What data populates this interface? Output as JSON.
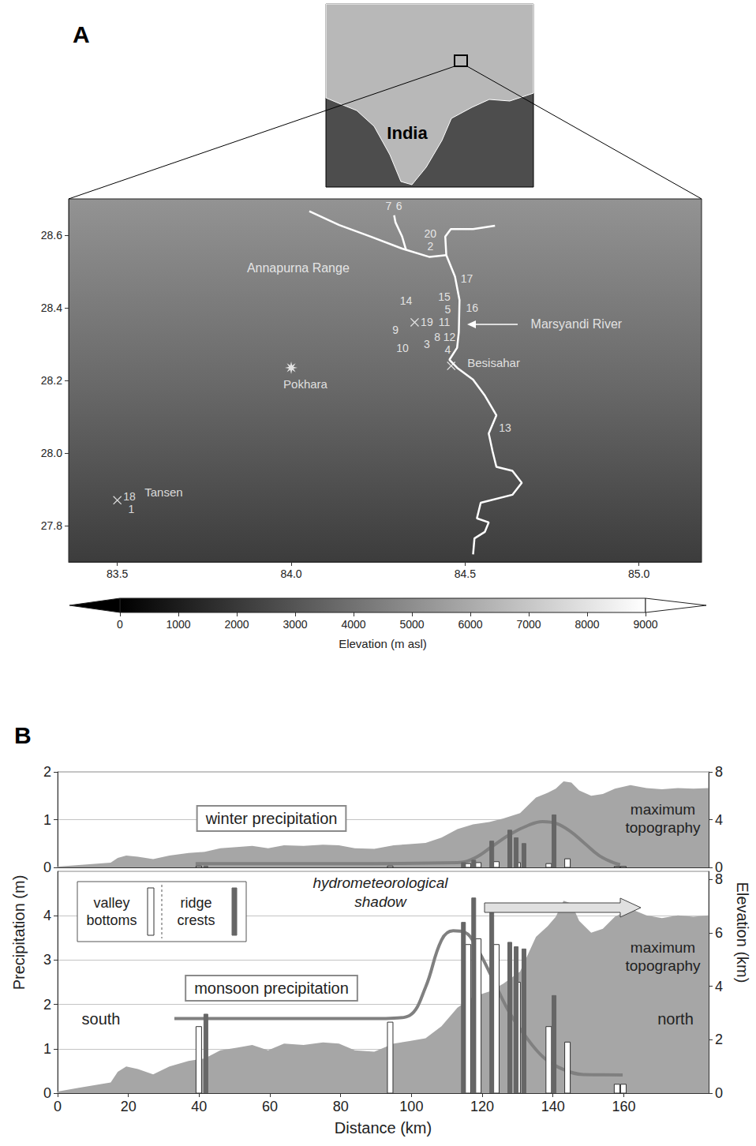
{
  "chart_data": [
    {
      "type": "map",
      "panel": "A",
      "xlim": [
        83.36,
        85.18
      ],
      "xticks": [
        83.5,
        {
          "value": 84,
          "label": "84.0"
        },
        84.5,
        {
          "value": 85,
          "label": "85.0"
        }
      ],
      "ylim": [
        27.7,
        28.7
      ],
      "yticks": [
        27.8,
        {
          "value": 28,
          "label": "28.0"
        },
        28.2,
        28.4,
        28.6
      ],
      "inset": {
        "label": "India"
      },
      "river": [
        [
          [
            84.523,
            27.721
          ],
          [
            84.527,
            27.765
          ],
          [
            84.557,
            27.783
          ],
          [
            84.568,
            27.809
          ],
          [
            84.534,
            27.82
          ],
          [
            84.545,
            27.863
          ],
          [
            84.636,
            27.885
          ],
          [
            84.663,
            27.918
          ],
          [
            84.636,
            27.951
          ],
          [
            84.59,
            27.962
          ],
          [
            84.579,
            28.005
          ],
          [
            84.568,
            28.054
          ],
          [
            84.59,
            28.104
          ],
          [
            84.557,
            28.158
          ],
          [
            84.523,
            28.202
          ],
          [
            84.477,
            28.235
          ],
          [
            84.455,
            28.257
          ],
          [
            84.477,
            28.29
          ],
          [
            84.482,
            28.333
          ],
          [
            84.484,
            28.421
          ],
          [
            84.471,
            28.486
          ],
          [
            84.446,
            28.545
          ],
          [
            84.443,
            28.596
          ],
          [
            84.459,
            28.617
          ],
          [
            84.523,
            28.617
          ],
          [
            84.586,
            28.626
          ]
        ],
        [
          [
            84.052,
            28.666
          ],
          [
            84.138,
            28.628
          ],
          [
            84.229,
            28.596
          ],
          [
            84.319,
            28.563
          ],
          [
            84.398,
            28.54
          ],
          [
            84.446,
            28.545
          ]
        ],
        [
          [
            84.296,
            28.655
          ],
          [
            84.3,
            28.635
          ],
          [
            84.319,
            28.596
          ],
          [
            84.33,
            28.56
          ]
        ]
      ],
      "stations": [
        {
          "id": 1,
          "lon": 83.54,
          "lat": 27.845
        },
        {
          "id": 2,
          "lon": 84.4,
          "lat": 28.57
        },
        {
          "id": 3,
          "lon": 84.39,
          "lat": 28.3
        },
        {
          "id": 4,
          "lon": 84.45,
          "lat": 28.285
        },
        {
          "id": 5,
          "lon": 84.45,
          "lat": 28.395
        },
        {
          "id": 6,
          "lon": 84.31,
          "lat": 28.68
        },
        {
          "id": 7,
          "lon": 84.28,
          "lat": 28.68
        },
        {
          "id": 8,
          "lon": 84.42,
          "lat": 28.32
        },
        {
          "id": 9,
          "lon": 84.3,
          "lat": 28.34
        },
        {
          "id": 10,
          "lon": 84.32,
          "lat": 28.29
        },
        {
          "id": 11,
          "lon": 84.44,
          "lat": 28.36
        },
        {
          "id": 12,
          "lon": 84.455,
          "lat": 28.32
        },
        {
          "id": 13,
          "lon": 84.615,
          "lat": 28.07
        },
        {
          "id": 14,
          "lon": 84.33,
          "lat": 28.42
        },
        {
          "id": 15,
          "lon": 84.44,
          "lat": 28.43
        },
        {
          "id": 16,
          "lon": 84.52,
          "lat": 28.4
        },
        {
          "id": 17,
          "lon": 84.505,
          "lat": 28.48
        },
        {
          "id": 18,
          "lon": 83.535,
          "lat": 27.88
        },
        {
          "id": 19,
          "lon": 84.39,
          "lat": 28.36
        },
        {
          "id": 20,
          "lon": 84.4,
          "lat": 28.605
        }
      ],
      "places": [
        {
          "name": "Pokhara",
          "lon": 84.0,
          "lat": 28.235,
          "marker": "star"
        },
        {
          "name": "Besisahar",
          "lon": 84.46,
          "lat": 28.24,
          "marker": "x"
        },
        {
          "name": "Tansen",
          "lon": 83.5,
          "lat": 27.87,
          "marker": "x"
        },
        {
          "lon": 84.355,
          "lat": 28.36,
          "marker": "x"
        }
      ],
      "labels": [
        {
          "text": "Annapurna Range",
          "lon": 84.02,
          "lat": 28.51
        },
        {
          "text": "Marsyandi River",
          "lon": 84.82,
          "lat": 28.355
        }
      ],
      "colorbar": {
        "range": [
          0,
          9000
        ],
        "ticks": [
          0,
          1000,
          2000,
          3000,
          4000,
          5000,
          6000,
          7000,
          8000,
          9000
        ],
        "label": "Elevation (m asl)"
      }
    },
    {
      "type": "bar",
      "panel": "B",
      "xlim": [
        0,
        184
      ],
      "ylim": [
        0,
        2
      ],
      "yticks": [
        0,
        1,
        2
      ],
      "y2lim": [
        0,
        8
      ],
      "y2ticks": [
        0,
        4,
        8
      ],
      "grid": true,
      "tick_labels": "y",
      "series": [
        {
          "name": "maximum topography",
          "type": "area",
          "axis": "y2",
          "color": "#a6a6a6",
          "x": [
            0,
            6,
            15,
            17,
            19.4,
            22.7,
            27,
            31.6,
            37,
            41.6,
            46,
            50.6,
            55,
            59.5,
            64,
            69.5,
            75,
            79.5,
            84,
            89.5,
            95,
            99.5,
            104,
            108.5,
            113,
            117.4,
            122,
            126,
            130.7,
            135.2,
            138.5,
            140.8,
            143,
            145.2,
            147.4,
            150.8,
            154.1,
            157.5,
            161.9,
            166.4,
            170.8,
            175.3,
            179.7,
            184
          ],
          "values": [
            0.06,
            0.2,
            0.4,
            0.8,
            1.0,
            0.9,
            0.7,
            1.0,
            1.2,
            1.3,
            1.6,
            1.7,
            1.8,
            1.6,
            1.85,
            1.8,
            1.9,
            1.85,
            1.6,
            1.55,
            1.85,
            1.95,
            2.05,
            2.5,
            3.2,
            3.6,
            3.8,
            4.1,
            4.55,
            5.85,
            6.25,
            6.6,
            7.2,
            7.1,
            6.45,
            6.0,
            6.15,
            6.6,
            6.9,
            6.65,
            6.55,
            6.65,
            6.6,
            6.65
          ]
        },
        {
          "name": "winter precipitation",
          "type": "line",
          "color": "#808080",
          "x": [
            39,
            80,
            113,
            118,
            123,
            128,
            133,
            137,
            141,
            145,
            149,
            153,
            157,
            159
          ],
          "values": [
            0.08,
            0.08,
            0.1,
            0.2,
            0.45,
            0.7,
            0.88,
            0.96,
            0.92,
            0.75,
            0.5,
            0.25,
            0.1,
            0.06
          ]
        },
        {
          "name": "valley bottoms",
          "type": "bar",
          "color": "#ffffff",
          "x": [
            39.9,
            94,
            116,
            118.9,
            124,
            130,
            138.8,
            144.1,
            158.1,
            159.9
          ],
          "values": [
            0.03,
            0.03,
            0.08,
            0.1,
            0.12,
            0.1,
            0.08,
            0.18,
            0.02,
            0.02
          ]
        },
        {
          "name": "ridge crests",
          "type": "bar",
          "color": "#666666",
          "x": [
            41.9,
            114.7,
            117.6,
            122.7,
            127.8,
            129.6,
            131.8,
            140.3
          ],
          "values": [
            0.03,
            0.1,
            0.15,
            0.55,
            0.78,
            0.62,
            0.5,
            1.1
          ]
        }
      ]
    },
    {
      "type": "bar",
      "xlabel": "Distance (km)",
      "ylabel": "Precipitation (m)",
      "y2label": "Elevation (km)",
      "xlim": [
        0,
        184
      ],
      "xticks": [
        0,
        20,
        40,
        60,
        80,
        100,
        120,
        140,
        160
      ],
      "ylim": [
        0,
        5
      ],
      "yticks": [
        0,
        1,
        2,
        3,
        4
      ],
      "y2lim": [
        0,
        8.3
      ],
      "y2ticks": [
        0,
        2,
        4,
        6,
        8
      ],
      "grid": true,
      "legend": "upper left",
      "annotations": [
        "hydrometeorological shadow",
        "south",
        "north"
      ],
      "series": [
        {
          "name": "maximum topography",
          "type": "area",
          "axis": "y2",
          "color": "#a6a6a6",
          "x": [
            0,
            6,
            15,
            17,
            19.4,
            22.7,
            27,
            31.6,
            37,
            41.6,
            46,
            50.6,
            55,
            59.5,
            64,
            69.5,
            75,
            79.5,
            84,
            89.5,
            95,
            99.5,
            104,
            108.5,
            113,
            117.4,
            122,
            126,
            130.7,
            135.2,
            138.5,
            140.8,
            143,
            145.2,
            147.4,
            150.8,
            154.1,
            157.5,
            161.9,
            166.4,
            170.8,
            175.3,
            179.7,
            184
          ],
          "values": [
            0.06,
            0.2,
            0.4,
            0.8,
            1.0,
            0.9,
            0.7,
            1.0,
            1.2,
            1.3,
            1.6,
            1.7,
            1.8,
            1.6,
            1.85,
            1.8,
            1.9,
            1.85,
            1.6,
            1.55,
            1.85,
            1.95,
            2.05,
            2.5,
            3.2,
            3.6,
            3.8,
            4.1,
            4.55,
            5.85,
            6.25,
            6.6,
            7.2,
            7.1,
            6.45,
            6.0,
            6.15,
            6.6,
            6.9,
            6.65,
            6.55,
            6.65,
            6.6,
            6.65
          ]
        },
        {
          "name": "monsoon precipitation",
          "type": "line",
          "color": "#808080",
          "x": [
            33,
            60,
            90,
            95,
            99.5,
            104,
            108.5,
            111.8,
            115,
            118.5,
            123,
            127.4,
            131.8,
            137.4,
            143,
            148.6,
            159.7
          ],
          "values": [
            1.68,
            1.68,
            1.68,
            1.69,
            1.75,
            2.39,
            3.45,
            3.66,
            3.63,
            3.27,
            2.57,
            1.86,
            1.33,
            0.8,
            0.53,
            0.42,
            0.41
          ]
        },
        {
          "name": "valley bottoms",
          "type": "bar",
          "color": "#ffffff",
          "x": [
            39.9,
            94,
            116,
            118.9,
            124,
            130,
            138.8,
            144.1,
            158.1,
            159.9
          ],
          "values": [
            1.5,
            1.6,
            3.35,
            3.48,
            3.35,
            2.5,
            1.5,
            1.15,
            0.2,
            0.2
          ]
        },
        {
          "name": "ridge crests",
          "type": "bar",
          "color": "#666666",
          "x": [
            41.9,
            114.7,
            117.6,
            122.7,
            127.8,
            129.6,
            131.8,
            140.3
          ],
          "values": [
            1.78,
            3.85,
            4.4,
            4.2,
            3.4,
            3.3,
            3.25,
            2.2
          ]
        }
      ]
    }
  ]
}
